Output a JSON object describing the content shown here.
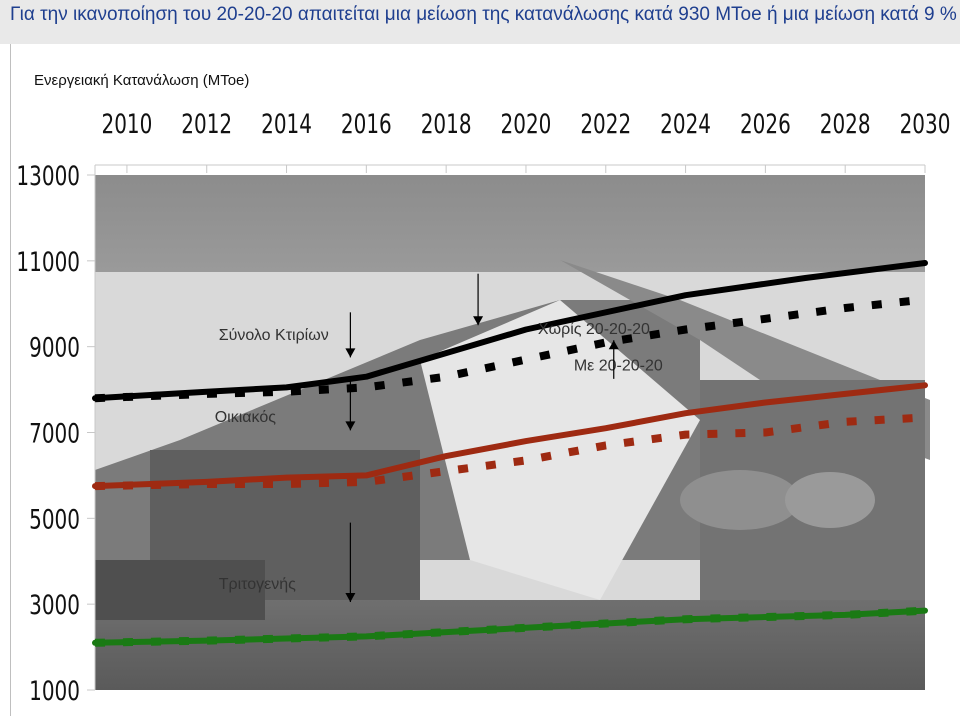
{
  "page_title": "Για την ικανοποίηση του 20-20-20 απαιτείται μια μείωση της κατανάλωσης κατά 930 MToe ή  μια μείωση κατά 9 %",
  "chart_data": {
    "type": "line",
    "title": "",
    "ylabel": "Ενεργειακή Κατανάλωση (MToe)",
    "xlabel": "",
    "x_ticks": [
      "2010",
      "2012",
      "2014",
      "2016",
      "2018",
      "2020",
      "2022",
      "2024",
      "2026",
      "2028",
      "2030"
    ],
    "y_ticks": [
      "13000",
      "11000",
      "9000",
      "7000",
      "5000",
      "3000",
      "1000"
    ],
    "xlim": [
      2009.2,
      2030
    ],
    "ylim": [
      1000,
      13000
    ],
    "x_axis_position": "top",
    "grid": false,
    "background": "photo of a house (greyscale) behind the plot area",
    "series": [
      {
        "name": "Σύνολο Κτιρίων",
        "group": "total",
        "style": "solid",
        "color": "#000000",
        "x": [
          2009.2,
          2012,
          2014,
          2016,
          2020,
          2024,
          2027,
          2030
        ],
        "y": [
          7800,
          7950,
          8050,
          8300,
          9400,
          10200,
          10600,
          10950
        ]
      },
      {
        "name": "Σύνολο Κτιρίων",
        "group": "total",
        "style": "dashed",
        "color": "#000000",
        "x": [
          2009.2,
          2012,
          2014,
          2016,
          2018,
          2020,
          2022,
          2024,
          2026,
          2028,
          2030
        ],
        "y": [
          7800,
          7900,
          7950,
          8050,
          8300,
          8700,
          9100,
          9400,
          9650,
          9900,
          10100
        ]
      },
      {
        "name": "Οικιακός",
        "group": "residential",
        "style": "solid",
        "color": "#9e2a12",
        "x": [
          2009.2,
          2012,
          2014,
          2016,
          2018,
          2020,
          2022,
          2024,
          2026,
          2028,
          2030
        ],
        "y": [
          5750,
          5850,
          5950,
          6000,
          6450,
          6800,
          7100,
          7450,
          7700,
          7900,
          8100
        ]
      },
      {
        "name": "Οικιακός",
        "group": "residential",
        "style": "dashed",
        "color": "#9e2a12",
        "x": [
          2009.2,
          2012,
          2014,
          2016,
          2018,
          2020,
          2022,
          2024,
          2026,
          2028,
          2030
        ],
        "y": [
          5750,
          5800,
          5800,
          5850,
          6100,
          6350,
          6700,
          6950,
          7000,
          7250,
          7350
        ]
      },
      {
        "name": "Τριτογενής",
        "group": "tertiary",
        "style": "solid",
        "color": "#1a7a14",
        "x": [
          2009.2,
          2012,
          2014,
          2016,
          2018,
          2020,
          2022,
          2024,
          2026,
          2028,
          2030
        ],
        "y": [
          2100,
          2150,
          2200,
          2250,
          2350,
          2450,
          2550,
          2650,
          2700,
          2750,
          2850
        ]
      },
      {
        "name": "Τριτογενής",
        "group": "tertiary",
        "style": "dashed",
        "color": "#1a7a14",
        "x": [
          2009.2,
          2012,
          2014,
          2016,
          2018,
          2020,
          2022,
          2024,
          2026,
          2028,
          2030
        ],
        "y": [
          2100,
          2150,
          2200,
          2250,
          2350,
          2450,
          2550,
          2650,
          2700,
          2750,
          2850
        ]
      }
    ],
    "annotations": [
      {
        "text": "Χωρίς 20-20-20",
        "x": 2020.3,
        "y": 9300,
        "arrow": {
          "from": [
            2018.8,
            10700
          ],
          "to": [
            2018.8,
            9500
          ]
        }
      },
      {
        "text": "Με 20-20-20",
        "x": 2021.2,
        "y": 8450,
        "arrow": {
          "from": [
            2022.2,
            8250
          ],
          "to": [
            2022.2,
            9150
          ]
        }
      },
      {
        "text": "Σύνολο Κτιρίων",
        "x": 2012.3,
        "y": 9150,
        "arrow": {
          "from": [
            2015.6,
            9800
          ],
          "to": [
            2015.6,
            8750
          ]
        }
      },
      {
        "text": "Οικιακός",
        "x": 2012.2,
        "y": 7250,
        "arrow": {
          "from": [
            2015.6,
            8250
          ],
          "to": [
            2015.6,
            7050
          ]
        }
      },
      {
        "text": "Τριτογενής",
        "x": 2012.3,
        "y": 3350,
        "arrow": {
          "from": [
            2015.6,
            4900
          ],
          "to": [
            2015.6,
            3050
          ]
        }
      }
    ]
  }
}
